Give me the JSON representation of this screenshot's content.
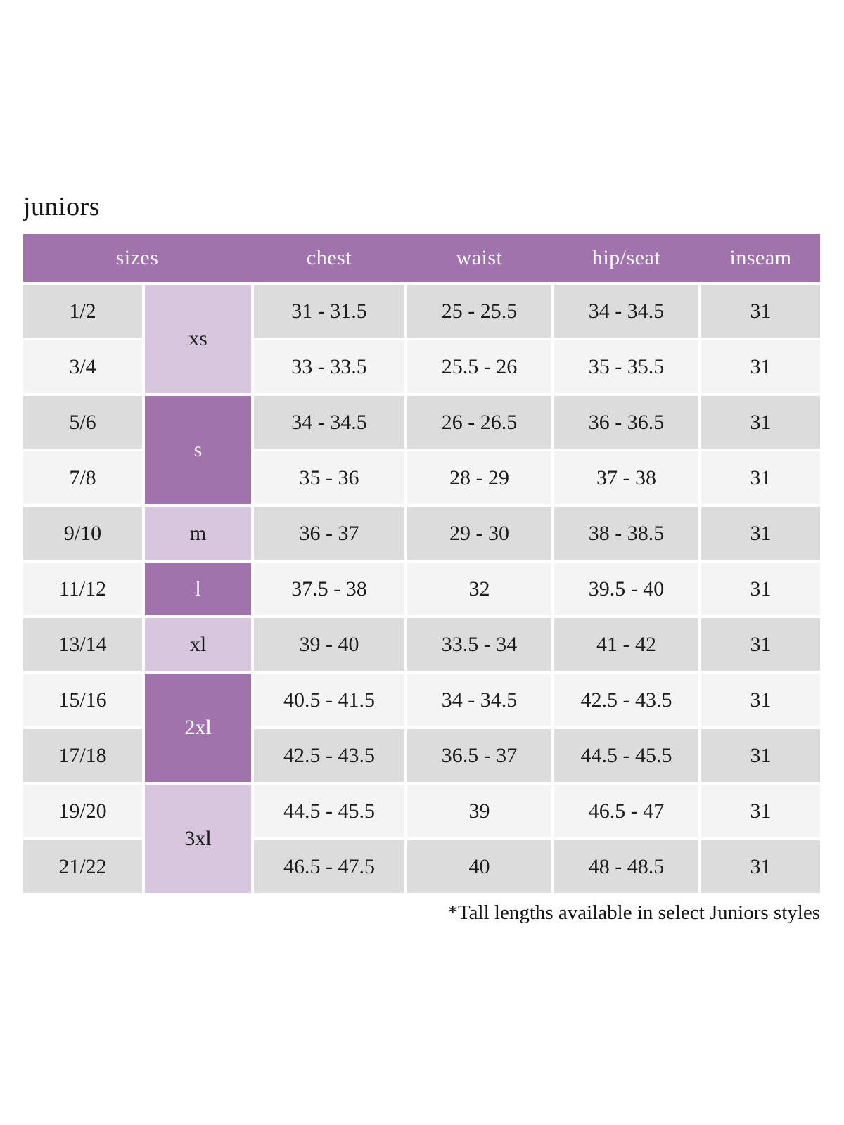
{
  "page": {
    "title": "juniors",
    "footnote": "*Tall lengths available in select Juniors styles"
  },
  "colors": {
    "header_purple": "#a173ad",
    "light_purple": "#d8c6de",
    "row_gray": "#dcdcdc",
    "row_light": "#f4f4f4",
    "header_text": "#ffffff",
    "text_dark": "#1c1c1c"
  },
  "table": {
    "headers": {
      "sizes": "sizes",
      "chest": "chest",
      "waist": "waist",
      "hip_seat": "hip/seat",
      "inseam": "inseam"
    },
    "letter_groups": [
      {
        "label": "xs",
        "rows": 2,
        "shade": "light"
      },
      {
        "label": "s",
        "rows": 2,
        "shade": "dark"
      },
      {
        "label": "m",
        "rows": 1,
        "shade": "light"
      },
      {
        "label": "l",
        "rows": 1,
        "shade": "dark"
      },
      {
        "label": "xl",
        "rows": 1,
        "shade": "light"
      },
      {
        "label": "2xl",
        "rows": 2,
        "shade": "dark"
      },
      {
        "label": "3xl",
        "rows": 2,
        "shade": "light"
      }
    ],
    "rows": [
      {
        "size": "1/2",
        "chest": "31 - 31.5",
        "waist": "25 - 25.5",
        "hip_seat": "34 - 34.5",
        "inseam": "31"
      },
      {
        "size": "3/4",
        "chest": "33 - 33.5",
        "waist": "25.5 - 26",
        "hip_seat": "35 - 35.5",
        "inseam": "31"
      },
      {
        "size": "5/6",
        "chest": "34 - 34.5",
        "waist": "26 - 26.5",
        "hip_seat": "36 - 36.5",
        "inseam": "31"
      },
      {
        "size": "7/8",
        "chest": "35 - 36",
        "waist": "28 - 29",
        "hip_seat": "37 - 38",
        "inseam": "31"
      },
      {
        "size": "9/10",
        "chest": "36 - 37",
        "waist": "29 - 30",
        "hip_seat": "38 - 38.5",
        "inseam": "31"
      },
      {
        "size": "11/12",
        "chest": "37.5 - 38",
        "waist": "32",
        "hip_seat": "39.5 - 40",
        "inseam": "31"
      },
      {
        "size": "13/14",
        "chest": "39 - 40",
        "waist": "33.5 - 34",
        "hip_seat": "41 - 42",
        "inseam": "31"
      },
      {
        "size": "15/16",
        "chest": "40.5 - 41.5",
        "waist": "34 - 34.5",
        "hip_seat": "42.5 - 43.5",
        "inseam": "31"
      },
      {
        "size": "17/18",
        "chest": "42.5 - 43.5",
        "waist": "36.5 - 37",
        "hip_seat": "44.5 - 45.5",
        "inseam": "31"
      },
      {
        "size": "19/20",
        "chest": "44.5 - 45.5",
        "waist": "39",
        "hip_seat": "46.5 - 47",
        "inseam": "31"
      },
      {
        "size": "21/22",
        "chest": "46.5 - 47.5",
        "waist": "40",
        "hip_seat": "48 - 48.5",
        "inseam": "31"
      }
    ]
  }
}
